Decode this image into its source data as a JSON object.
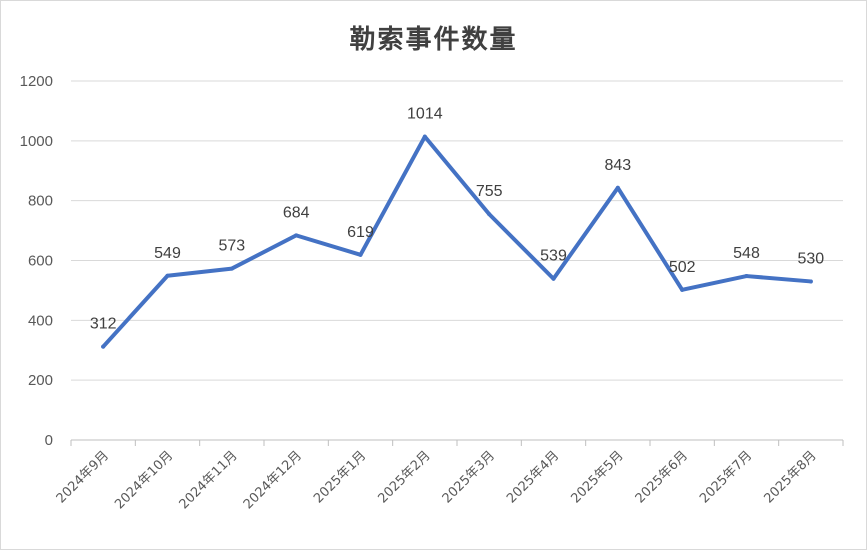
{
  "chart_data": {
    "type": "line",
    "title": "勒索事件数量",
    "categories": [
      "2024年9月",
      "2024年10月",
      "2024年11月",
      "2024年12月",
      "2025年1月",
      "2025年2月",
      "2025年3月",
      "2025年4月",
      "2025年5月",
      "2025年6月",
      "2025年7月",
      "2025年8月"
    ],
    "series": [
      {
        "values": [
          312,
          549,
          573,
          684,
          619,
          1014,
          755,
          539,
          843,
          502,
          548,
          530
        ],
        "color": "#4472c4"
      }
    ],
    "ylim": [
      0,
      1200
    ],
    "yticks": [
      0,
      200,
      400,
      600,
      800,
      1000,
      1200
    ],
    "grid": true,
    "legend": "none",
    "data_labels": true
  }
}
